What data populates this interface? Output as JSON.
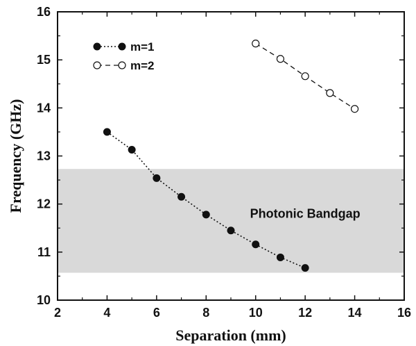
{
  "chart_data": {
    "type": "line",
    "xlabel": "Separation (mm)",
    "ylabel": "Frequency (GHz)",
    "xlim": [
      2,
      16
    ],
    "ylim": [
      10,
      16
    ],
    "xticks": [
      "2",
      "4",
      "6",
      "8",
      "10",
      "12",
      "14",
      "16"
    ],
    "yticks": [
      "10",
      "11",
      "12",
      "13",
      "14",
      "15",
      "16"
    ],
    "grid": false,
    "legend_position": "top-left",
    "band": {
      "label": "Photonic Bandgap",
      "y_range": [
        10.57,
        12.73
      ],
      "color": "#d9d9d9"
    },
    "series": [
      {
        "name": "m=1",
        "marker": "filled-circle",
        "line_style": "dotted",
        "x": [
          4,
          5,
          6,
          7,
          8,
          9,
          10,
          11,
          12
        ],
        "y": [
          13.5,
          13.13,
          12.54,
          12.15,
          11.78,
          11.45,
          11.16,
          10.89,
          10.67
        ]
      },
      {
        "name": "m=2",
        "marker": "open-circle",
        "line_style": "dashed",
        "x": [
          10,
          11,
          12,
          13,
          14
        ],
        "y": [
          15.34,
          15.02,
          14.66,
          14.31,
          13.98
        ]
      }
    ]
  }
}
